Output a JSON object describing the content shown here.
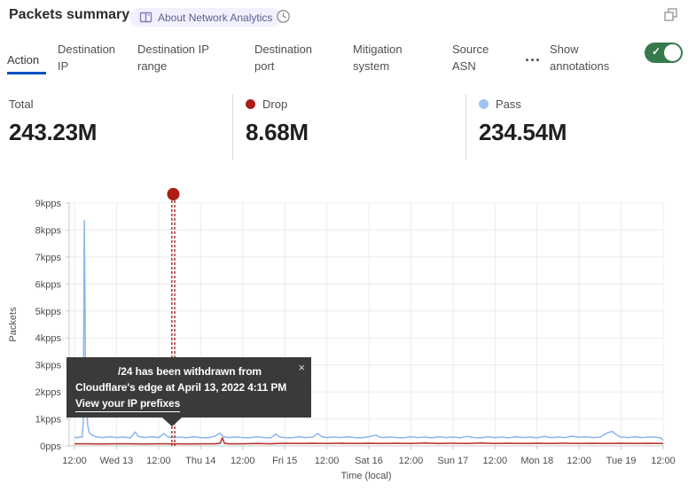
{
  "header": {
    "title": "Packets summary",
    "badge_label": "About Network Analytics"
  },
  "tabs": [
    {
      "label": "Action",
      "active": true
    },
    {
      "label": "Destination IP",
      "active": false
    },
    {
      "label": "Destination IP range",
      "active": false
    },
    {
      "label": "Destination port",
      "active": false
    },
    {
      "label": "Mitigation system",
      "active": false
    },
    {
      "label": "Source ASN",
      "active": false
    }
  ],
  "more_label": "...",
  "annotations_toggle": {
    "label": "Show annotations",
    "state": "on"
  },
  "stats": [
    {
      "label": "Total",
      "value": "243.23M",
      "dot_color": null
    },
    {
      "label": "Drop",
      "value": "8.68M",
      "dot_color": "#ad1a1a"
    },
    {
      "label": "Pass",
      "value": "234.54M",
      "dot_color": "#9ec3f4"
    }
  ],
  "tooltip": {
    "line1": "/24 has been withdrawn from",
    "line2": "Cloudflare's edge at April 13, 2022 4:11 PM",
    "link": "View your IP prefixes",
    "close": "×"
  },
  "chart_data": {
    "type": "line",
    "xlabel": "Time (local)",
    "ylabel": "Packets",
    "x_ticks": [
      "12:00",
      "Wed 13",
      "12:00",
      "Thu 14",
      "12:00",
      "Fri 15",
      "12:00",
      "Sat 16",
      "12:00",
      "Sun 17",
      "12:00",
      "Mon 18",
      "12:00",
      "Tue 19",
      "12:00"
    ],
    "y_ticks": [
      "0pps",
      "1kpps",
      "2kpps",
      "3kpps",
      "4kpps",
      "5kpps",
      "6kpps",
      "7kpps",
      "8kpps",
      "9kpps"
    ],
    "ylim": [
      0,
      9
    ],
    "x_range_hours": [
      0,
      168
    ],
    "grid": true,
    "annotation": {
      "x_hours": 28.2,
      "note": "IP prefix withdrawn April 13, 2022 4:11 PM",
      "color": "#9c1d14"
    },
    "series": [
      {
        "name": "Pass",
        "color": "#8ab5ee",
        "points": [
          [
            0,
            0.33
          ],
          [
            0.8,
            0.3
          ],
          [
            1.6,
            0.34
          ],
          [
            2.2,
            0.32
          ],
          [
            2.5,
            0.9
          ],
          [
            2.8,
            8.35
          ],
          [
            3.0,
            5.2
          ],
          [
            3.2,
            1.15
          ],
          [
            3.5,
            1.3
          ],
          [
            3.8,
            0.75
          ],
          [
            4.2,
            0.5
          ],
          [
            5,
            0.4
          ],
          [
            6,
            0.34
          ],
          [
            8,
            0.31
          ],
          [
            10,
            0.34
          ],
          [
            12,
            0.31
          ],
          [
            14,
            0.33
          ],
          [
            16,
            0.3
          ],
          [
            17.3,
            0.52
          ],
          [
            18.2,
            0.35
          ],
          [
            20,
            0.31
          ],
          [
            22,
            0.34
          ],
          [
            24,
            0.31
          ],
          [
            25.5,
            0.46
          ],
          [
            26.5,
            0.34
          ],
          [
            28,
            0.31
          ],
          [
            30,
            0.33
          ],
          [
            32,
            0.3
          ],
          [
            34,
            0.34
          ],
          [
            36,
            0.31
          ],
          [
            38,
            0.3
          ],
          [
            40,
            0.35
          ],
          [
            41.5,
            0.48
          ],
          [
            42.5,
            0.34
          ],
          [
            44,
            0.31
          ],
          [
            46,
            0.33
          ],
          [
            48,
            0.31
          ],
          [
            50,
            0.3
          ],
          [
            52,
            0.34
          ],
          [
            54,
            0.31
          ],
          [
            56,
            0.3
          ],
          [
            57.5,
            0.44
          ],
          [
            58.5,
            0.33
          ],
          [
            60,
            0.31
          ],
          [
            62,
            0.3
          ],
          [
            64,
            0.34
          ],
          [
            66,
            0.31
          ],
          [
            68,
            0.33
          ],
          [
            69.5,
            0.46
          ],
          [
            70.5,
            0.34
          ],
          [
            72,
            0.31
          ],
          [
            74,
            0.33
          ],
          [
            76,
            0.31
          ],
          [
            78,
            0.34
          ],
          [
            80,
            0.31
          ],
          [
            82,
            0.3
          ],
          [
            84,
            0.34
          ],
          [
            86,
            0.4
          ],
          [
            87,
            0.33
          ],
          [
            88,
            0.31
          ],
          [
            90,
            0.33
          ],
          [
            92,
            0.31
          ],
          [
            94,
            0.3
          ],
          [
            96,
            0.34
          ],
          [
            98,
            0.31
          ],
          [
            100,
            0.33
          ],
          [
            102,
            0.3
          ],
          [
            104,
            0.34
          ],
          [
            106,
            0.31
          ],
          [
            108,
            0.33
          ],
          [
            110,
            0.3
          ],
          [
            112,
            0.35
          ],
          [
            114,
            0.31
          ],
          [
            116,
            0.3
          ],
          [
            118,
            0.34
          ],
          [
            120,
            0.31
          ],
          [
            122,
            0.33
          ],
          [
            124,
            0.3
          ],
          [
            126,
            0.34
          ],
          [
            128,
            0.31
          ],
          [
            130,
            0.33
          ],
          [
            132,
            0.3
          ],
          [
            134,
            0.35
          ],
          [
            136,
            0.31
          ],
          [
            138,
            0.33
          ],
          [
            140,
            0.31
          ],
          [
            142,
            0.36
          ],
          [
            144,
            0.32
          ],
          [
            146,
            0.34
          ],
          [
            148,
            0.31
          ],
          [
            150,
            0.33
          ],
          [
            152,
            0.48
          ],
          [
            153.5,
            0.54
          ],
          [
            155,
            0.38
          ],
          [
            156,
            0.33
          ],
          [
            158,
            0.31
          ],
          [
            160,
            0.34
          ],
          [
            162,
            0.31
          ],
          [
            164,
            0.33
          ],
          [
            166,
            0.32
          ],
          [
            167.3,
            0.3
          ],
          [
            168,
            0.2
          ]
        ]
      },
      {
        "name": "Drop",
        "color": "#b42d23",
        "points": [
          [
            0,
            0.08
          ],
          [
            4,
            0.08
          ],
          [
            8,
            0.07
          ],
          [
            12,
            0.08
          ],
          [
            16,
            0.08
          ],
          [
            20,
            0.07
          ],
          [
            24,
            0.08
          ],
          [
            28,
            0.08
          ],
          [
            32,
            0.07
          ],
          [
            36,
            0.08
          ],
          [
            40,
            0.08
          ],
          [
            41.6,
            0.1
          ],
          [
            42.2,
            0.3
          ],
          [
            42.8,
            0.1
          ],
          [
            44,
            0.08
          ],
          [
            48,
            0.08
          ],
          [
            52,
            0.09
          ],
          [
            56,
            0.08
          ],
          [
            60,
            0.1
          ],
          [
            64,
            0.09
          ],
          [
            68,
            0.1
          ],
          [
            72,
            0.09
          ],
          [
            76,
            0.1
          ],
          [
            80,
            0.09
          ],
          [
            84,
            0.1
          ],
          [
            88,
            0.09
          ],
          [
            92,
            0.1
          ],
          [
            96,
            0.09
          ],
          [
            100,
            0.11
          ],
          [
            104,
            0.09
          ],
          [
            108,
            0.1
          ],
          [
            112,
            0.09
          ],
          [
            116,
            0.11
          ],
          [
            120,
            0.09
          ],
          [
            124,
            0.1
          ],
          [
            128,
            0.09
          ],
          [
            132,
            0.1
          ],
          [
            136,
            0.09
          ],
          [
            140,
            0.1
          ],
          [
            144,
            0.09
          ],
          [
            148,
            0.1
          ],
          [
            152,
            0.09
          ],
          [
            156,
            0.1
          ],
          [
            160,
            0.09
          ],
          [
            164,
            0.1
          ],
          [
            168,
            0.09
          ]
        ]
      }
    ]
  },
  "colors": {
    "accent_blue": "#0051c3",
    "toggle_green": "#36794b",
    "drop_red": "#b42d23",
    "pass_blue": "#8ab5ee",
    "annotation_red": "#9c1d14",
    "tooltip_bg": "#3a3a3a",
    "grid": "#ececec",
    "axis": "#c9c9c9"
  }
}
